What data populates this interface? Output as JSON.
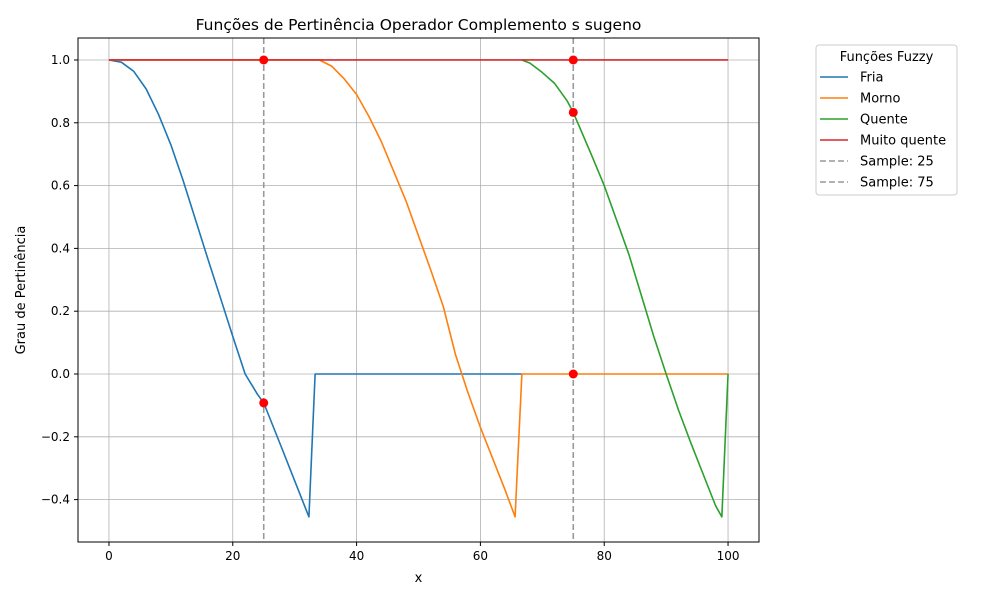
{
  "chart_data": {
    "type": "line",
    "title": "Funções de Pertinência Operador Complemento s sugeno",
    "xlabel": "x",
    "ylabel": "Grau de Pertinência",
    "xlim": [
      -5,
      105
    ],
    "ylim": [
      -0.535,
      1.07
    ],
    "xticks": [
      0,
      20,
      40,
      60,
      80,
      100
    ],
    "yticks": [
      -0.4,
      -0.2,
      0.0,
      0.2,
      0.4,
      0.6,
      0.8,
      1.0
    ],
    "xtick_labels": [
      "0",
      "20",
      "40",
      "60",
      "80",
      "100"
    ],
    "ytick_labels": [
      "−0.4",
      "−0.2",
      "0.0",
      "0.2",
      "0.4",
      "0.6",
      "0.8",
      "1.0"
    ],
    "grid": true,
    "legend": {
      "title": "Funções Fuzzy",
      "placement": "outside-right-top"
    },
    "series": [
      {
        "name": "Fria",
        "color": "#1f77b4",
        "points": [
          [
            0,
            1.0
          ],
          [
            2,
            0.993
          ],
          [
            4,
            0.964
          ],
          [
            6,
            0.908
          ],
          [
            8,
            0.827
          ],
          [
            10,
            0.73
          ],
          [
            12,
            0.615
          ],
          [
            14,
            0.49
          ],
          [
            16,
            0.365
          ],
          [
            18,
            0.243
          ],
          [
            20,
            0.12
          ],
          [
            22,
            0.0
          ],
          [
            24,
            -0.065
          ],
          [
            25,
            -0.092
          ],
          [
            28,
            -0.24
          ],
          [
            30,
            -0.34
          ],
          [
            32.3,
            -0.455
          ],
          [
            33.3,
            0.0
          ],
          [
            66.7,
            0.0
          ]
        ]
      },
      {
        "name": "Morno",
        "color": "#ff7f0e",
        "points": [
          [
            0,
            1.0
          ],
          [
            34,
            1.0
          ],
          [
            36,
            0.98
          ],
          [
            38,
            0.94
          ],
          [
            40,
            0.89
          ],
          [
            42,
            0.82
          ],
          [
            44,
            0.74
          ],
          [
            46,
            0.645
          ],
          [
            48,
            0.55
          ],
          [
            50,
            0.44
          ],
          [
            52,
            0.33
          ],
          [
            54,
            0.215
          ],
          [
            56,
            0.06
          ],
          [
            58,
            -0.06
          ],
          [
            60,
            -0.17
          ],
          [
            62,
            -0.27
          ],
          [
            64,
            -0.37
          ],
          [
            65.6,
            -0.455
          ],
          [
            66.7,
            0.0
          ],
          [
            100,
            0.0
          ]
        ]
      },
      {
        "name": "Quente",
        "color": "#2ca02c",
        "points": [
          [
            66.7,
            1.0
          ],
          [
            68,
            0.99
          ],
          [
            70,
            0.96
          ],
          [
            72,
            0.925
          ],
          [
            74,
            0.87
          ],
          [
            75,
            0.833
          ],
          [
            78,
            0.695
          ],
          [
            80,
            0.6
          ],
          [
            82,
            0.49
          ],
          [
            84,
            0.38
          ],
          [
            86,
            0.25
          ],
          [
            88,
            0.12
          ],
          [
            90,
            0.0
          ],
          [
            92,
            -0.115
          ],
          [
            94,
            -0.22
          ],
          [
            96,
            -0.32
          ],
          [
            98,
            -0.42
          ],
          [
            99,
            -0.455
          ],
          [
            100,
            0.0
          ]
        ]
      },
      {
        "name": "Muito quente",
        "color": "#d62728",
        "points": [
          [
            0,
            1.0
          ],
          [
            100,
            1.0
          ]
        ]
      }
    ],
    "vlines": [
      {
        "name": "Sample: 25",
        "x": 25,
        "color": "#999999"
      },
      {
        "name": "Sample: 75",
        "x": 75,
        "color": "#999999"
      }
    ],
    "markers": {
      "color": "#ff0000",
      "points": [
        [
          25,
          1.0
        ],
        [
          25,
          -0.092
        ],
        [
          75,
          1.0
        ],
        [
          75,
          0.833
        ],
        [
          75,
          0.0
        ]
      ]
    }
  }
}
